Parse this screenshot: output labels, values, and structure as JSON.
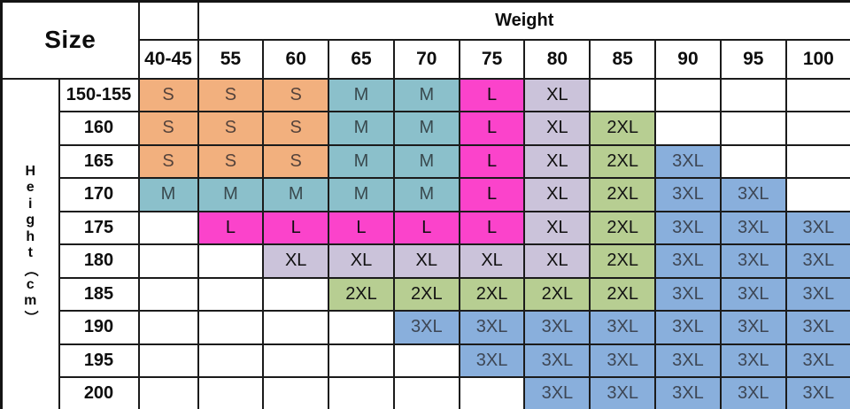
{
  "chart_data": {
    "type": "table",
    "corner_label": "Size",
    "col_axis_label": "Weight",
    "row_axis_label": "Height（cm）",
    "row_axis_chars": [
      "H",
      "e",
      "i",
      "g",
      "h",
      "t",
      "（",
      "c",
      "m",
      "）"
    ],
    "columns": [
      "40-45",
      "55",
      "60",
      "65",
      "70",
      "75",
      "80",
      "85",
      "90",
      "95",
      "100"
    ],
    "rows": [
      "150-155",
      "160",
      "165",
      "170",
      "175",
      "180",
      "185",
      "190",
      "195",
      "200"
    ],
    "values": [
      [
        "S",
        "S",
        "S",
        "M",
        "M",
        "L",
        "XL",
        "",
        "",
        "",
        ""
      ],
      [
        "S",
        "S",
        "S",
        "M",
        "M",
        "L",
        "XL",
        "2XL",
        "",
        "",
        ""
      ],
      [
        "S",
        "S",
        "S",
        "M",
        "M",
        "L",
        "XL",
        "2XL",
        "3XL",
        "",
        ""
      ],
      [
        "M",
        "M",
        "M",
        "M",
        "M",
        "L",
        "XL",
        "2XL",
        "3XL",
        "3XL",
        ""
      ],
      [
        "",
        "L",
        "L",
        "L",
        "L",
        "L",
        "XL",
        "2XL",
        "3XL",
        "3XL",
        "3XL"
      ],
      [
        "",
        "",
        "XL",
        "XL",
        "XL",
        "XL",
        "XL",
        "2XL",
        "3XL",
        "3XL",
        "3XL"
      ],
      [
        "",
        "",
        "",
        "2XL",
        "2XL",
        "2XL",
        "2XL",
        "2XL",
        "3XL",
        "3XL",
        "3XL"
      ],
      [
        "",
        "",
        "",
        "",
        "3XL",
        "3XL",
        "3XL",
        "3XL",
        "3XL",
        "3XL",
        "3XL"
      ],
      [
        "",
        "",
        "",
        "",
        "",
        "3XL",
        "3XL",
        "3XL",
        "3XL",
        "3XL",
        "3XL"
      ],
      [
        "",
        "",
        "",
        "",
        "",
        "",
        "3XL",
        "3XL",
        "3XL",
        "3XL",
        "3XL"
      ]
    ],
    "size_colors": {
      "S": {
        "bg": "#F2B07E",
        "text": "#55433B"
      },
      "M": {
        "bg": "#8BC0CB",
        "text": "#39494E"
      },
      "L": {
        "bg": "#FB43CB",
        "text": "#0E0E0E"
      },
      "XL": {
        "bg": "#CBC3DA",
        "text": "#101010"
      },
      "2XL": {
        "bg": "#B7CE92",
        "text": "#131313"
      },
      "3XL": {
        "bg": "#89AFDC",
        "text": "#3D4654"
      }
    },
    "border_color": "#1B1B1B",
    "background_color": "#FFFFFF"
  }
}
